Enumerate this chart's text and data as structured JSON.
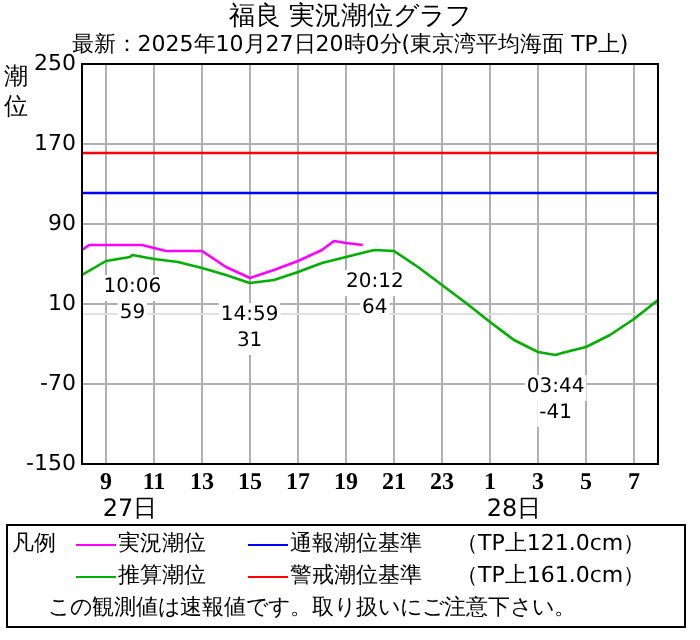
{
  "chart_data": {
    "type": "line",
    "title": "福良 実況潮位グラフ",
    "subtitle": "最新：2025年10月27日20時0分(東京湾平均海面 TP上)",
    "ylabel": "潮位",
    "legend_title": "凡例",
    "legend": "bottom",
    "grid": true,
    "marker": "none",
    "line_style": "solid",
    "xlim": [
      "2025-10-27T08:00",
      "2025-10-28T08:00"
    ],
    "ylim": [
      -150,
      250
    ],
    "xticks": [
      {
        "value": "2025-10-27T09:00",
        "label": "9"
      },
      {
        "value": "2025-10-27T11:00",
        "label": "11"
      },
      {
        "value": "2025-10-27T13:00",
        "label": "13"
      },
      {
        "value": "2025-10-27T15:00",
        "label": "15"
      },
      {
        "value": "2025-10-27T17:00",
        "label": "17"
      },
      {
        "value": "2025-10-27T19:00",
        "label": "19"
      },
      {
        "value": "2025-10-27T21:00",
        "label": "21"
      },
      {
        "value": "2025-10-27T23:00",
        "label": "23"
      },
      {
        "value": "2025-10-28T01:00",
        "label": "1"
      },
      {
        "value": "2025-10-28T03:00",
        "label": "3"
      },
      {
        "value": "2025-10-28T05:00",
        "label": "5"
      },
      {
        "value": "2025-10-28T07:00",
        "label": "7"
      }
    ],
    "yticks": [
      -150,
      -70,
      10,
      90,
      170,
      250
    ],
    "series": [
      {
        "name": "実況潮位",
        "color": "#ff00ff",
        "x": [
          "2025-10-27T08:00",
          "2025-10-27T08:18",
          "2025-10-27T09:00",
          "2025-10-27T10:00",
          "2025-10-27T10:30",
          "2025-10-27T11:00",
          "2025-10-27T11:30",
          "2025-10-27T12:00",
          "2025-10-27T13:00",
          "2025-10-27T14:00",
          "2025-10-27T15:00",
          "2025-10-27T16:00",
          "2025-10-27T17:00",
          "2025-10-27T18:00",
          "2025-10-27T18:30",
          "2025-10-27T19:00",
          "2025-10-27T19:42"
        ],
        "values": [
          64,
          69,
          69,
          69,
          69,
          66,
          63,
          63,
          63,
          47,
          36,
          44,
          53,
          64,
          73,
          71,
          69
        ]
      },
      {
        "name": "通報潮位基準",
        "color": "#0000ff",
        "x": [
          "2025-10-27T08:00",
          "2025-10-28T08:00"
        ],
        "values": [
          121,
          121
        ]
      },
      {
        "name": "推算潮位",
        "color": "#00b000",
        "x": [
          "2025-10-27T08:00",
          "2025-10-27T09:00",
          "2025-10-27T10:00",
          "2025-10-27T10:06",
          "2025-10-27T11:00",
          "2025-10-27T12:00",
          "2025-10-27T13:00",
          "2025-10-27T14:00",
          "2025-10-27T14:59",
          "2025-10-27T16:00",
          "2025-10-27T17:00",
          "2025-10-27T18:00",
          "2025-10-27T19:00",
          "2025-10-27T20:00",
          "2025-10-27T20:12",
          "2025-10-27T21:00",
          "2025-10-27T22:00",
          "2025-10-27T23:00",
          "2025-10-28T00:00",
          "2025-10-28T01:00",
          "2025-10-28T02:00",
          "2025-10-28T03:00",
          "2025-10-28T03:44",
          "2025-10-28T04:00",
          "2025-10-28T05:00",
          "2025-10-28T06:00",
          "2025-10-28T07:00",
          "2025-10-28T08:00"
        ],
        "values": [
          39,
          53,
          57,
          59,
          55,
          52,
          46,
          39,
          31,
          34,
          42,
          51,
          57,
          63,
          64,
          63,
          47,
          29,
          11,
          -8,
          -26,
          -38,
          -41,
          -39,
          -33,
          -21,
          -5,
          14
        ]
      },
      {
        "name": "警戒潮位基準",
        "color": "#ff0000",
        "x": [
          "2025-10-27T08:00",
          "2025-10-28T08:00"
        ],
        "values": [
          161,
          161
        ]
      }
    ],
    "ref_lines": [
      {
        "axis": "y",
        "value": 0,
        "color": "#e0e0e0"
      }
    ],
    "annotations": [
      {
        "text": "10:06\n59",
        "x": "2025-10-27T10:06",
        "y": 59
      },
      {
        "text": "14:59\n31",
        "x": "2025-10-27T14:59",
        "y": 31
      },
      {
        "text": "20:12\n64",
        "x": "2025-10-27T20:12",
        "y": 64
      },
      {
        "text": "03:44\n-41",
        "x": "2025-10-28T03:44",
        "y": -41
      },
      "27日",
      "28日",
      "（TP上121.0cm）",
      "（TP上161.0cm）",
      "この観測値は速報値です。取り扱いにご注意下さい。"
    ]
  }
}
